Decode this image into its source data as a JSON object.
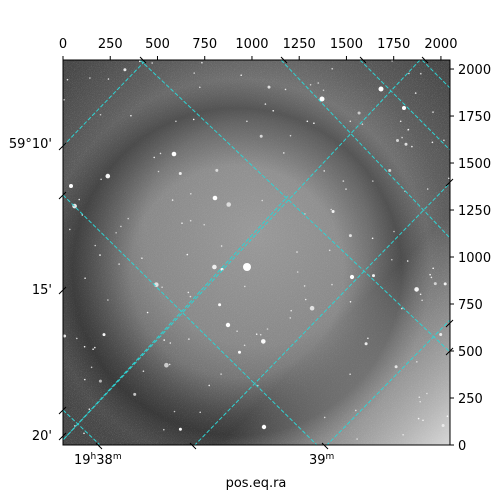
{
  "chart_data": {
    "type": "image",
    "title": "",
    "xlabel": "pos.eq.ra",
    "ylabel": "",
    "pixel_axes": {
      "x_range": [
        0,
        2048
      ],
      "y_range": [
        0,
        2048
      ],
      "top_ticks": [
        "0",
        "250",
        "500",
        "750",
        "1000",
        "1250",
        "1500",
        "1750",
        "2000"
      ],
      "right_ticks": [
        "0",
        "250",
        "500",
        "750",
        "1000",
        "1250",
        "1500",
        "1750",
        "2000"
      ]
    },
    "world_axes": {
      "ra_ticks": [
        {
          "h": "19",
          "m": "38",
          "prefix": "19",
          "prefix_sup": "h",
          "mid": "38",
          "mid_sup": "m"
        },
        {
          "h": "",
          "m": "39",
          "prefix": "",
          "prefix_sup": "",
          "mid": "39",
          "mid_sup": "m"
        }
      ],
      "dec_ticks": [
        "59°10'",
        "15'",
        "20'"
      ]
    },
    "grid": true,
    "grid_color": "#2fd3d3",
    "image_colormap": "gray"
  }
}
